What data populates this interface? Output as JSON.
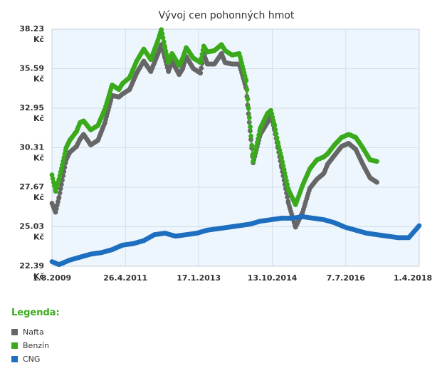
{
  "chart_data": {
    "type": "line",
    "title": "Vývoj cen pohonných hmot",
    "xlabel": "",
    "ylabel": "",
    "y_unit": "Kč",
    "ylim": [
      22.39,
      38.23
    ],
    "y_ticks": [
      "38.23",
      "35.59",
      "32.95",
      "30.31",
      "27.67",
      "25.03",
      "22.39"
    ],
    "x_ticks": [
      "1.8.2009",
      "26.4.2011",
      "17.1.2013",
      "13.10.2014",
      "7.7.2016",
      "1.4.2018"
    ],
    "grid": true,
    "series": [
      {
        "name": "Nafta",
        "color": "#666666",
        "x": [
          "1.8.2009",
          "1.9.2009",
          "1.10.2009",
          "1.12.2009",
          "1.1.2010",
          "1.3.2010",
          "1.4.2010",
          "1.5.2010",
          "1.7.2010",
          "1.9.2010",
          "1.11.2010",
          "1.1.2011",
          "1.3.2011",
          "1.4.2011",
          "1.6.2011",
          "1.8.2011",
          "1.10.2011",
          "1.12.2011",
          "1.2.2012",
          "1.3.2012",
          "1.4.2012",
          "1.5.2012",
          "1.6.2012",
          "1.8.2012",
          "1.9.2012",
          "1.10.2012",
          "1.12.2012",
          "1.2.2013",
          "1.3.2013",
          "1.4.2013",
          "1.6.2013",
          "1.8.2013",
          "1.9.2013",
          "1.11.2013",
          "1.1.2014",
          "1.3.2014",
          "1.5.2014",
          "1.7.2014",
          "1.9.2014",
          "1.10.2014",
          "1.11.2014",
          "1.12.2014",
          "1.1.2015",
          "1.3.2015",
          "1.5.2015",
          "1.7.2015",
          "1.9.2015",
          "1.11.2015",
          "1.1.2016",
          "1.2.2016",
          "1.4.2016",
          "1.6.2016",
          "1.8.2016",
          "1.10.2016",
          "1.12.2016",
          "1.2.2017",
          "1.4.2017",
          "1.6.2017",
          "1.8.2017",
          "1.10.2017"
        ],
        "values": [
          26.6,
          26.0,
          27.0,
          29.5,
          30.0,
          30.4,
          30.9,
          31.2,
          30.5,
          30.8,
          32.0,
          33.8,
          33.7,
          33.9,
          34.2,
          35.3,
          36.1,
          35.4,
          36.6,
          37.2,
          36.3,
          35.4,
          36.1,
          35.2,
          35.6,
          36.4,
          35.6,
          35.3,
          36.6,
          35.9,
          35.9,
          36.6,
          36.0,
          35.9,
          35.9,
          34.3,
          29.3,
          31.2,
          32.0,
          32.5,
          31.5,
          30.3,
          29.0,
          26.6,
          25.0,
          26.0,
          27.6,
          28.2,
          28.6,
          29.2,
          29.8,
          30.4,
          30.6,
          30.2,
          29.2,
          28.3,
          28.0,
          null,
          null,
          null
        ]
      },
      {
        "name": "Benzín",
        "color": "#3aaa1c",
        "x": [
          "1.8.2009",
          "1.9.2009",
          "1.10.2009",
          "1.12.2009",
          "1.1.2010",
          "1.3.2010",
          "1.4.2010",
          "1.5.2010",
          "1.7.2010",
          "1.9.2010",
          "1.11.2010",
          "1.1.2011",
          "1.3.2011",
          "1.4.2011",
          "1.6.2011",
          "1.8.2011",
          "1.10.2011",
          "1.12.2011",
          "1.2.2012",
          "1.3.2012",
          "1.4.2012",
          "1.5.2012",
          "1.6.2012",
          "1.8.2012",
          "1.9.2012",
          "1.10.2012",
          "1.12.2012",
          "1.2.2013",
          "1.3.2013",
          "1.4.2013",
          "1.6.2013",
          "1.8.2013",
          "1.9.2013",
          "1.11.2013",
          "1.1.2014",
          "1.3.2014",
          "1.5.2014",
          "1.7.2014",
          "1.9.2014",
          "1.10.2014",
          "1.11.2014",
          "1.12.2014",
          "1.1.2015",
          "1.3.2015",
          "1.5.2015",
          "1.7.2015",
          "1.9.2015",
          "1.11.2015",
          "1.1.2016",
          "1.2.2016",
          "1.4.2016",
          "1.6.2016",
          "1.8.2016",
          "1.10.2016",
          "1.12.2016",
          "1.2.2017",
          "1.4.2017",
          "1.6.2017",
          "1.8.2017",
          "1.10.2017"
        ],
        "values": [
          28.5,
          27.4,
          28.2,
          30.3,
          30.8,
          31.4,
          32.0,
          32.1,
          31.5,
          31.8,
          32.9,
          34.5,
          34.2,
          34.6,
          35.0,
          36.1,
          36.9,
          36.2,
          37.5,
          38.2,
          37.0,
          36.0,
          36.6,
          35.8,
          36.3,
          37.0,
          36.3,
          36.0,
          37.1,
          36.7,
          36.8,
          37.2,
          36.8,
          36.5,
          36.6,
          34.8,
          29.4,
          31.6,
          32.6,
          32.8,
          31.8,
          30.6,
          29.6,
          27.5,
          26.5,
          27.8,
          28.9,
          29.5,
          29.7,
          29.9,
          30.5,
          31.0,
          31.2,
          31.0,
          30.3,
          29.5,
          29.4,
          null,
          null,
          null
        ]
      },
      {
        "name": "CNG",
        "color": "#1f6fbf",
        "x": [
          "1.8.2009",
          "1.10.2009",
          "1.1.2010",
          "1.4.2010",
          "1.7.2010",
          "1.10.2010",
          "1.1.2011",
          "1.4.2011",
          "1.7.2011",
          "1.10.2011",
          "1.1.2012",
          "1.4.2012",
          "1.7.2012",
          "1.10.2012",
          "1.1.2013",
          "1.4.2013",
          "1.7.2013",
          "1.10.2013",
          "1.1.2014",
          "1.4.2014",
          "1.7.2014",
          "1.10.2014",
          "1.1.2015",
          "1.4.2015",
          "1.7.2015",
          "1.10.2015",
          "1.1.2016",
          "1.4.2016",
          "1.7.2016",
          "1.10.2016",
          "1.1.2017",
          "1.4.2017",
          "1.7.2017",
          "1.10.2017",
          "1.1.2018",
          "1.4.2018"
        ],
        "values": [
          22.7,
          22.5,
          22.8,
          23.0,
          23.2,
          23.3,
          23.5,
          23.8,
          23.9,
          24.1,
          24.5,
          24.6,
          24.4,
          24.5,
          24.6,
          24.8,
          24.9,
          25.0,
          25.1,
          25.2,
          25.4,
          25.5,
          25.6,
          25.6,
          25.7,
          25.6,
          25.5,
          25.3,
          25.0,
          24.8,
          24.6,
          24.5,
          24.4,
          24.3,
          24.3,
          25.1
        ]
      }
    ]
  },
  "legend": {
    "title": "Legenda:",
    "items": [
      {
        "label": "Nafta",
        "color": "#666666"
      },
      {
        "label": "Benzín",
        "color": "#3aaa1c"
      },
      {
        "label": "CNG",
        "color": "#1f6fbf"
      }
    ]
  }
}
